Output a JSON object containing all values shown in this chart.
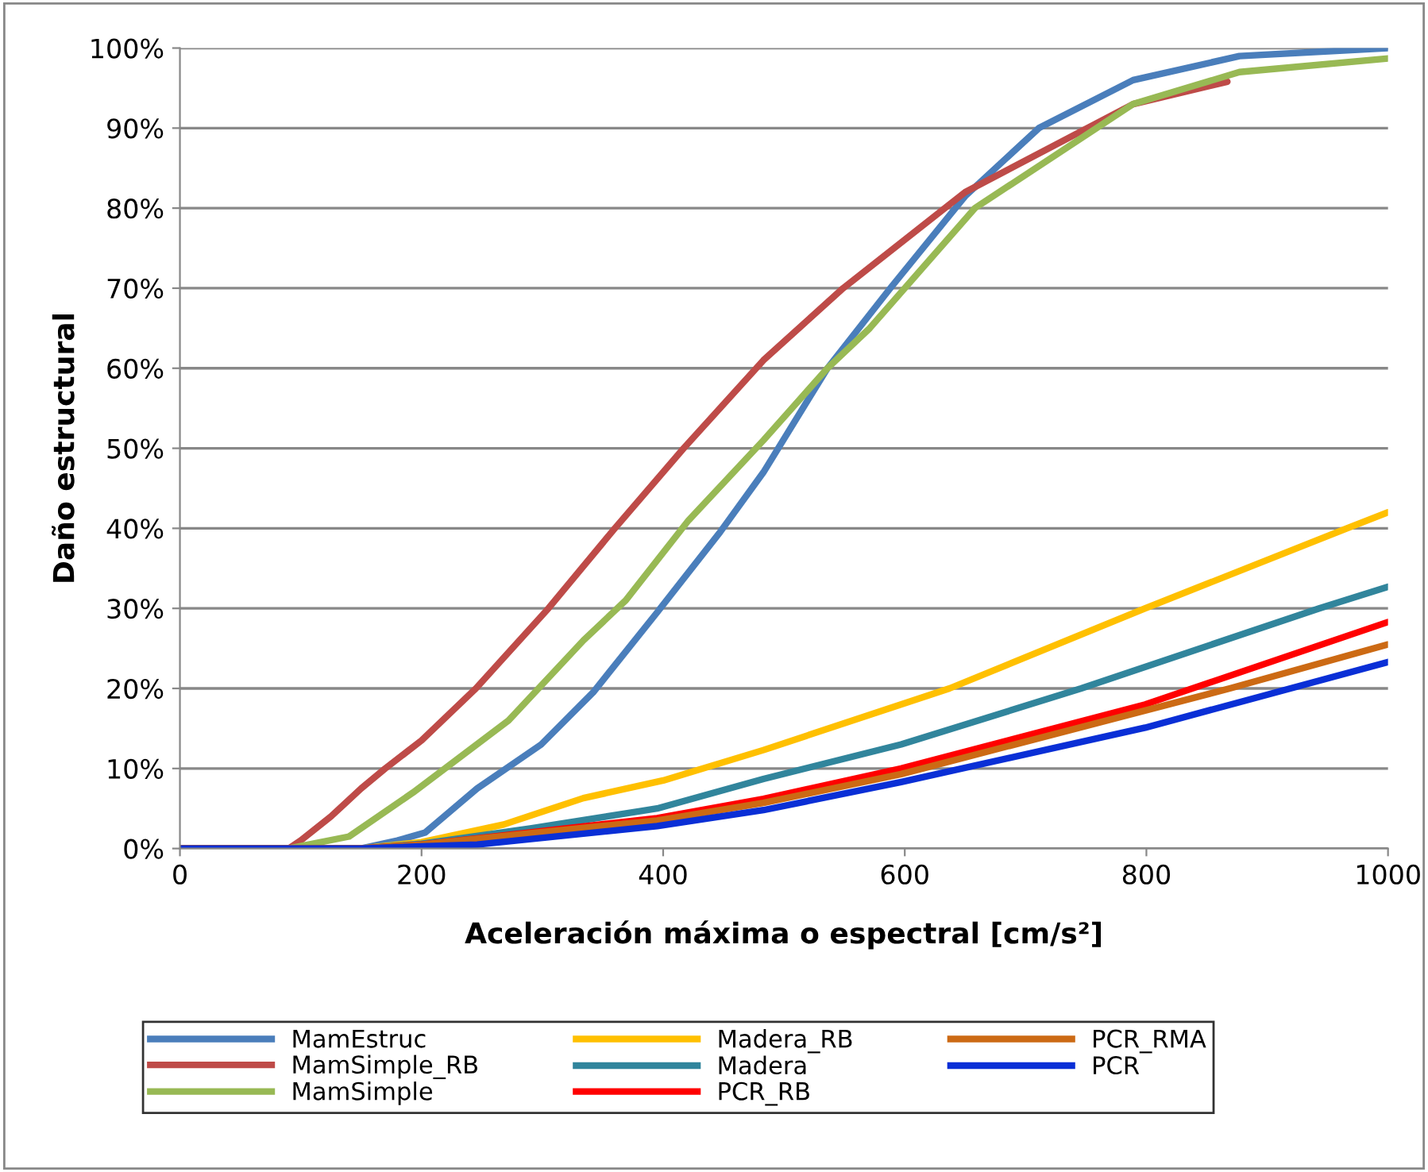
{
  "chart_data": {
    "type": "line",
    "xlabel": "Aceleración máxima o espectral [cm/s²]",
    "ylabel": "Daño estructural",
    "xlim": [
      0,
      1000
    ],
    "xticks": [
      0,
      200,
      400,
      600,
      800,
      1000
    ],
    "ylim": [
      0,
      100
    ],
    "yticks": [
      {
        "value": 0,
        "label": "0%"
      },
      {
        "value": 10,
        "label": "10%"
      },
      {
        "value": 20,
        "label": "20%"
      },
      {
        "value": 30,
        "label": "30%"
      },
      {
        "value": 40,
        "label": "40%"
      },
      {
        "value": 50,
        "label": "50%"
      },
      {
        "value": 60,
        "label": "60%"
      },
      {
        "value": 70,
        "label": "70%"
      },
      {
        "value": 80,
        "label": "80%"
      },
      {
        "value": 90,
        "label": "90%"
      },
      {
        "value": 100,
        "label": "100%"
      }
    ],
    "grid": "y",
    "legend": "bottom",
    "marker": "none",
    "line_style": "solid",
    "series": [
      {
        "name": "MamEstruc",
        "color": "#4a7ebb",
        "x": [
          0,
          150,
          180,
          203,
          246,
          299,
          342,
          395,
          447,
          483,
          536,
          588,
          650,
          711,
          789,
          877,
          1000
        ],
        "values": [
          0,
          0,
          1,
          2,
          7.5,
          13,
          19.5,
          29.5,
          39.5,
          47,
          60,
          70,
          81.5,
          90,
          96,
          99,
          100
        ]
      },
      {
        "name": "MamSimple_RB",
        "color": "#be4b48",
        "x": [
          0,
          90,
          100,
          125,
          150,
          170,
          200,
          245,
          305,
          360,
          417,
          483,
          549,
          650,
          789,
          867
        ],
        "values": [
          0,
          0,
          1,
          4,
          7.5,
          10,
          13.5,
          20,
          30,
          40,
          50,
          61,
          70,
          82,
          93,
          95.8
        ]
      },
      {
        "name": "MamSimple",
        "color": "#98b954",
        "x": [
          0,
          90,
          140,
          193,
          272,
          334,
          369,
          421,
          483,
          536,
          571,
          658,
          789,
          877,
          1000
        ],
        "values": [
          0,
          0,
          1.5,
          7,
          16,
          26,
          31,
          41,
          51,
          60,
          65,
          80,
          93,
          97,
          98.7
        ]
      },
      {
        "name": "Madera_RB",
        "color": "#ffc000",
        "x": [
          0,
          150,
          200,
          268,
          334,
          400,
          483,
          637,
          799,
          966,
          1000
        ],
        "values": [
          0,
          0,
          0.8,
          3,
          6.3,
          8.5,
          12.3,
          20,
          30,
          40,
          42
        ]
      },
      {
        "name": "Madera",
        "color": "#31859c",
        "x": [
          0,
          150,
          200,
          290,
          395,
          483,
          597,
          746,
          943,
          1000
        ],
        "values": [
          0,
          0,
          0.6,
          2.5,
          5,
          8.7,
          13,
          20,
          30,
          32.7
        ]
      },
      {
        "name": "PCR_RB",
        "color": "#ff0000",
        "x": [
          0,
          150,
          200,
          290,
          395,
          483,
          597,
          799,
          1000
        ],
        "values": [
          0,
          0,
          0.5,
          2,
          3.8,
          6.2,
          10,
          18,
          28.3
        ]
      },
      {
        "name": "PCR_RMA",
        "color": "#cc6a14",
        "x": [
          0,
          150,
          200,
          290,
          395,
          483,
          597,
          869,
          1000
        ],
        "values": [
          0,
          0,
          0.5,
          1.9,
          3.5,
          5.7,
          9.3,
          20,
          25.5
        ]
      },
      {
        "name": "PCR",
        "color": "#0a2fd6",
        "x": [
          0,
          150,
          246,
          395,
          483,
          597,
          799,
          1000
        ],
        "values": [
          0,
          0,
          0.5,
          2.8,
          4.8,
          8.3,
          15.1,
          23.3
        ]
      }
    ]
  }
}
